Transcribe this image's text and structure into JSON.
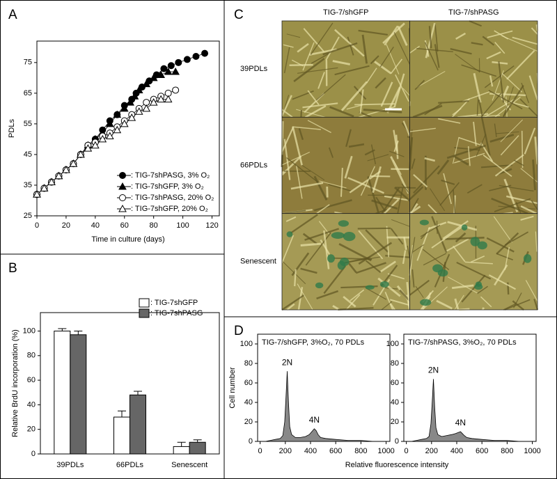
{
  "chart_data": [
    {
      "type": "line",
      "panel": "A",
      "xlabel": "Time in culture (days)",
      "ylabel": "PDLs",
      "xlim": [
        0,
        125
      ],
      "ylim": [
        25,
        82
      ],
      "xticks": [
        0,
        20,
        40,
        60,
        80,
        100,
        120
      ],
      "yticks": [
        25,
        35,
        45,
        55,
        65,
        75
      ],
      "legend": "lower right",
      "series": [
        {
          "name": ": TIG-7shPASG, 3% O₂",
          "color": "#000000",
          "marker": "circle",
          "filled": true,
          "x": [
            0,
            5,
            10,
            15,
            20,
            25,
            30,
            35,
            40,
            45,
            50,
            55,
            60,
            65,
            68,
            72,
            77,
            82,
            87,
            92,
            97,
            103,
            109,
            115
          ],
          "values": [
            32,
            34,
            36,
            38,
            40,
            42,
            45,
            48,
            50,
            53,
            56,
            58,
            61,
            63,
            65,
            67,
            69,
            71,
            73,
            74,
            75,
            76,
            77,
            78
          ]
        },
        {
          "name": ": TIG-7shGFP, 3% O₂",
          "color": "#000000",
          "marker": "triangle",
          "filled": true,
          "x": [
            0,
            5,
            10,
            15,
            20,
            25,
            30,
            35,
            40,
            45,
            50,
            55,
            60,
            64,
            67,
            70,
            75,
            80,
            85,
            90,
            95
          ],
          "values": [
            32,
            34,
            36,
            38,
            40,
            42,
            45,
            48,
            50,
            52,
            55,
            58,
            60,
            62,
            64,
            66,
            68,
            70,
            71,
            72,
            72
          ]
        },
        {
          "name": ": TIG-7shPASG, 20% O₂",
          "color": "#000000",
          "marker": "circle",
          "filled": false,
          "x": [
            0,
            5,
            10,
            15,
            20,
            25,
            30,
            35,
            40,
            45,
            50,
            55,
            60,
            65,
            70,
            75,
            80,
            85,
            90,
            95
          ],
          "values": [
            32,
            34,
            36,
            38,
            40,
            42,
            45,
            48,
            49,
            51,
            52,
            54,
            56,
            58,
            60,
            62,
            63,
            64,
            65,
            66
          ]
        },
        {
          "name": ": TIG-7shGFP, 20% O₂",
          "color": "#000000",
          "marker": "triangle",
          "filled": false,
          "x": [
            0,
            5,
            10,
            15,
            20,
            25,
            30,
            35,
            40,
            45,
            50,
            55,
            60,
            65,
            70,
            75,
            80,
            85,
            90
          ],
          "values": [
            32,
            34,
            36,
            38,
            40,
            42,
            45,
            47,
            48,
            50,
            51,
            53,
            55,
            57,
            59,
            60,
            62,
            63,
            63
          ]
        }
      ]
    },
    {
      "type": "bar",
      "panel": "B",
      "ylabel": "Relative BrdU incorporation (%)",
      "ylim": [
        0,
        115
      ],
      "yticks": [
        0,
        20,
        40,
        60,
        80,
        100
      ],
      "legend": "upper right",
      "categories": [
        "39PDLs",
        "66PDLs",
        "Senescent"
      ],
      "series": [
        {
          "name": ": TIG-7shGFP",
          "color": "#ffffff",
          "values": [
            100,
            30,
            6
          ],
          "errors": [
            2,
            5,
            3.5
          ]
        },
        {
          "name": ": TIG-7shPASG",
          "color": "#666666",
          "values": [
            97,
            48,
            9.5
          ],
          "errors": [
            3,
            3,
            2
          ]
        }
      ]
    },
    {
      "type": "area",
      "panel": "D",
      "title": "TIG-7/shGFP, 3%O₂, 70 PDLs",
      "ylabel": "Cell number",
      "xlabel": "Relative fluorescence intensity",
      "xlim": [
        -20,
        1030
      ],
      "ylim": [
        0,
        110
      ],
      "xticks": [
        0,
        200,
        400,
        600,
        800,
        1000
      ],
      "yticks": [
        0,
        20,
        40,
        60,
        80,
        100
      ],
      "color": "#888888",
      "annotations": [
        "2N",
        "4N"
      ],
      "x": [
        0,
        40,
        80,
        120,
        160,
        180,
        195,
        205,
        215,
        225,
        235,
        250,
        280,
        320,
        360,
        390,
        410,
        430,
        445,
        460,
        480,
        520,
        600,
        700,
        800,
        900,
        1000
      ],
      "values": [
        0,
        0,
        1,
        2,
        3,
        6,
        20,
        45,
        72,
        40,
        15,
        7,
        4,
        4,
        5,
        7,
        10,
        13,
        11,
        7,
        4,
        3,
        2,
        1,
        1,
        0,
        0
      ]
    },
    {
      "type": "area",
      "title": "TIG-7/shPASG, 3%O₂, 70 PDLs",
      "xlim": [
        -20,
        1030
      ],
      "ylim": [
        0,
        110
      ],
      "xticks": [
        0,
        200,
        400,
        600,
        800,
        1000
      ],
      "yticks": [
        0,
        20,
        40,
        60,
        80,
        100
      ],
      "color": "#888888",
      "annotations": [
        "2N",
        "4N"
      ],
      "x": [
        0,
        40,
        80,
        120,
        160,
        180,
        195,
        205,
        215,
        225,
        235,
        250,
        280,
        320,
        360,
        390,
        410,
        430,
        445,
        460,
        480,
        520,
        600,
        700,
        800,
        900,
        1000
      ],
      "values": [
        0,
        0,
        1,
        2,
        3,
        5,
        18,
        40,
        64,
        35,
        14,
        7,
        5,
        6,
        7,
        8,
        9,
        10,
        8,
        6,
        4,
        3,
        2,
        1,
        1,
        0,
        0
      ]
    }
  ],
  "image_panel": {
    "panel": "C",
    "columns": [
      "TIG-7/shGFP",
      "TIG-7/shPASG"
    ],
    "rows": [
      "39PDLs",
      "66PDLs",
      "Senescent"
    ]
  }
}
